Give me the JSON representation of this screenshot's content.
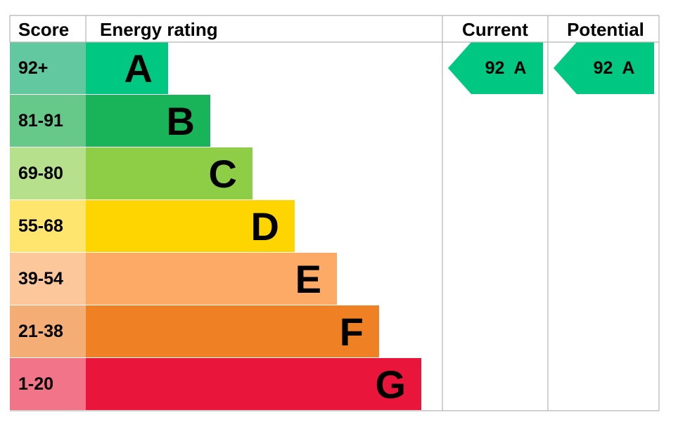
{
  "headers": {
    "score": "Score",
    "energy_rating": "Energy rating",
    "current": "Current",
    "potential": "Potential"
  },
  "chart_data": {
    "type": "bar",
    "bands": [
      {
        "letter": "A",
        "range": "92+",
        "color": "#00c781",
        "score_bg": "#62c89f"
      },
      {
        "letter": "B",
        "range": "81-91",
        "color": "#19b459",
        "score_bg": "#66c98a"
      },
      {
        "letter": "C",
        "range": "69-80",
        "color": "#8dce46",
        "score_bg": "#b6e08b"
      },
      {
        "letter": "D",
        "range": "55-68",
        "color": "#ffd500",
        "score_bg": "#fee56e"
      },
      {
        "letter": "E",
        "range": "39-54",
        "color": "#fcaa65",
        "score_bg": "#fdc79c"
      },
      {
        "letter": "F",
        "range": "21-38",
        "color": "#ef8023",
        "score_bg": "#f4ad74"
      },
      {
        "letter": "G",
        "range": "1-20",
        "color": "#e9153b",
        "score_bg": "#f17489"
      }
    ],
    "current": {
      "value": 92,
      "letter": "A",
      "label": "92  A",
      "color": "#00c781"
    },
    "potential": {
      "value": 92,
      "letter": "A",
      "label": "92  A",
      "color": "#00c781"
    }
  }
}
